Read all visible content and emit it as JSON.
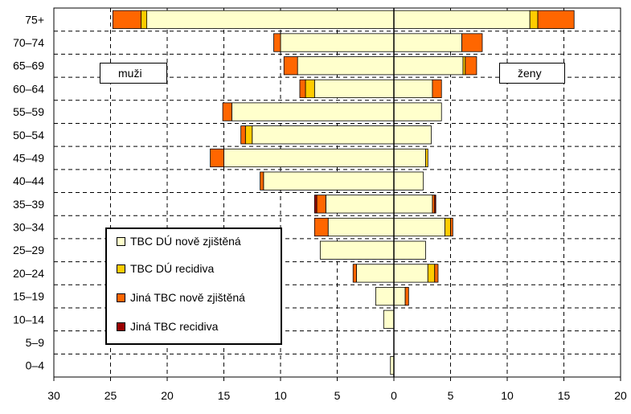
{
  "chart_data": {
    "type": "bar",
    "orientation": "horizontal",
    "layout": "population-pyramid",
    "categories": [
      "75+",
      "70–74",
      "65–69",
      "60–64",
      "55–59",
      "50–54",
      "45–49",
      "40–44",
      "35–39",
      "30–34",
      "25–29",
      "20–24",
      "15–19",
      "10–14",
      "5–9",
      "0–4"
    ],
    "x_tick_labels": [
      "30",
      "25",
      "20",
      "15",
      "10",
      "5",
      "0",
      "5",
      "10",
      "15",
      "20"
    ],
    "xlim": [
      -30,
      20
    ],
    "grid": true,
    "legend": {
      "position": "bottom-left",
      "entries": [
        {
          "name": "TBC DÚ nově zjištěná",
          "color": "#FFFFCC"
        },
        {
          "name": "TBC DÚ recidiva",
          "color": "#FFCC00"
        },
        {
          "name": "Jiná TBC nově zjištěná",
          "color": "#FF6600"
        },
        {
          "name": "Jiná TBC recidiva",
          "color": "#990000"
        }
      ]
    },
    "groups": {
      "left": {
        "label": "muži"
      },
      "right": {
        "label": "ženy"
      }
    },
    "series_order": [
      "TBC DÚ nově zjištěná",
      "TBC DÚ recidiva",
      "Jiná TBC nově zjištěná",
      "Jiná TBC recidiva"
    ],
    "men": [
      [
        21.8,
        0.5,
        2.5,
        0.0
      ],
      [
        10.0,
        0.0,
        0.6,
        0.0
      ],
      [
        8.5,
        0.0,
        1.2,
        0.0
      ],
      [
        7.0,
        0.8,
        0.5,
        0.0
      ],
      [
        14.3,
        0.0,
        0.8,
        0.0
      ],
      [
        12.5,
        0.6,
        0.4,
        0.0
      ],
      [
        15.0,
        0.0,
        1.2,
        0.0
      ],
      [
        11.5,
        0.0,
        0.3,
        0.0
      ],
      [
        6.0,
        0.0,
        0.8,
        0.2
      ],
      [
        5.8,
        0.0,
        1.2,
        0.0
      ],
      [
        6.5,
        0.0,
        0.0,
        0.0
      ],
      [
        3.3,
        0.0,
        0.3,
        0.0
      ],
      [
        1.6,
        0.0,
        0.0,
        0.0
      ],
      [
        0.9,
        0.0,
        0.0,
        0.0
      ],
      [
        0.0,
        0.0,
        0.0,
        0.0
      ],
      [
        0.3,
        0.0,
        0.0,
        0.0
      ]
    ],
    "women": [
      [
        12.0,
        0.7,
        3.2,
        0.0
      ],
      [
        6.0,
        0.0,
        1.8,
        0.0
      ],
      [
        6.1,
        0.2,
        1.0,
        0.0
      ],
      [
        3.4,
        0.0,
        0.8,
        0.0
      ],
      [
        4.2,
        0.0,
        0.0,
        0.0
      ],
      [
        3.3,
        0.0,
        0.0,
        0.0
      ],
      [
        2.8,
        0.2,
        0.0,
        0.0
      ],
      [
        2.6,
        0.0,
        0.0,
        0.0
      ],
      [
        3.4,
        0.0,
        0.2,
        0.1
      ],
      [
        4.5,
        0.5,
        0.2,
        0.0
      ],
      [
        2.8,
        0.0,
        0.0,
        0.0
      ],
      [
        3.0,
        0.6,
        0.3,
        0.0
      ],
      [
        1.0,
        0.0,
        0.3,
        0.0
      ],
      [
        0.0,
        0.0,
        0.0,
        0.0
      ],
      [
        0.0,
        0.0,
        0.0,
        0.0
      ],
      [
        0.0,
        0.0,
        0.0,
        0.0
      ]
    ]
  }
}
